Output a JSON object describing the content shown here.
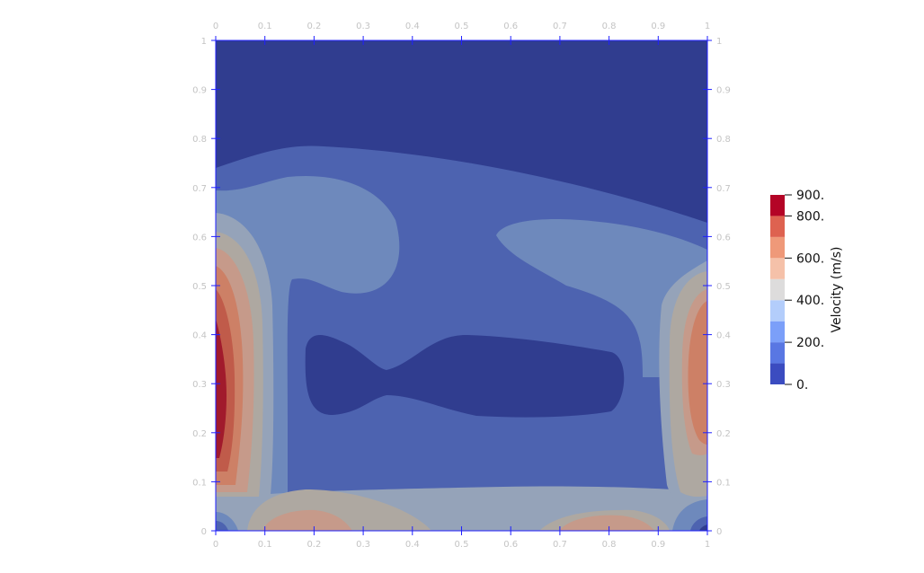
{
  "chart_data": {
    "type": "heatmap",
    "title": "",
    "xlabel": "",
    "ylabel": "",
    "xlim": [
      0,
      1
    ],
    "ylim": [
      0,
      1
    ],
    "x_ticks": [
      "0",
      "0.1",
      "0.2",
      "0.3",
      "0.4",
      "0.5",
      "0.6",
      "0.7",
      "0.8",
      "0.9",
      "1"
    ],
    "y_ticks": [
      "0",
      "0.1",
      "0.2",
      "0.3",
      "0.4",
      "0.5",
      "0.6",
      "0.7",
      "0.8",
      "0.9",
      "1"
    ],
    "grid": false,
    "colorbar": {
      "title": "Velocity (m/s)",
      "range": [
        0,
        900
      ],
      "labels": [
        {
          "value": 900,
          "text": "900."
        },
        {
          "value": 800,
          "text": "800."
        },
        {
          "value": 600,
          "text": "600."
        },
        {
          "value": 400,
          "text": "400."
        },
        {
          "value": 200,
          "text": "200."
        },
        {
          "value": 0,
          "text": "0."
        }
      ],
      "bands": [
        {
          "from": 0,
          "to": 100,
          "color": "#3b4cc0"
        },
        {
          "from": 100,
          "to": 200,
          "color": "#5977e3"
        },
        {
          "from": 200,
          "to": 300,
          "color": "#7b9ff9"
        },
        {
          "from": 300,
          "to": 400,
          "color": "#b3cdfb"
        },
        {
          "from": 400,
          "to": 500,
          "color": "#dddcdc"
        },
        {
          "from": 500,
          "to": 600,
          "color": "#f5c1a9"
        },
        {
          "from": 600,
          "to": 700,
          "color": "#ef9979"
        },
        {
          "from": 700,
          "to": 800,
          "color": "#de6250"
        },
        {
          "from": 800,
          "to": 900,
          "color": "#b40426"
        }
      ]
    },
    "field_levels": [
      {
        "name": "level-0",
        "color": "#303d8f"
      },
      {
        "name": "level-1",
        "color": "#4d63b0"
      },
      {
        "name": "level-2",
        "color": "#6e89bc"
      },
      {
        "name": "level-3",
        "color": "#95a3b9"
      },
      {
        "name": "level-4",
        "color": "#aea8a1"
      },
      {
        "name": "level-5",
        "color": "#c69a8a"
      },
      {
        "name": "level-6",
        "color": "#cd8066"
      },
      {
        "name": "level-7",
        "color": "#c05b4a"
      },
      {
        "name": "level-8",
        "color": "#a11a2c"
      }
    ],
    "axis_color": "#1f1fff"
  }
}
